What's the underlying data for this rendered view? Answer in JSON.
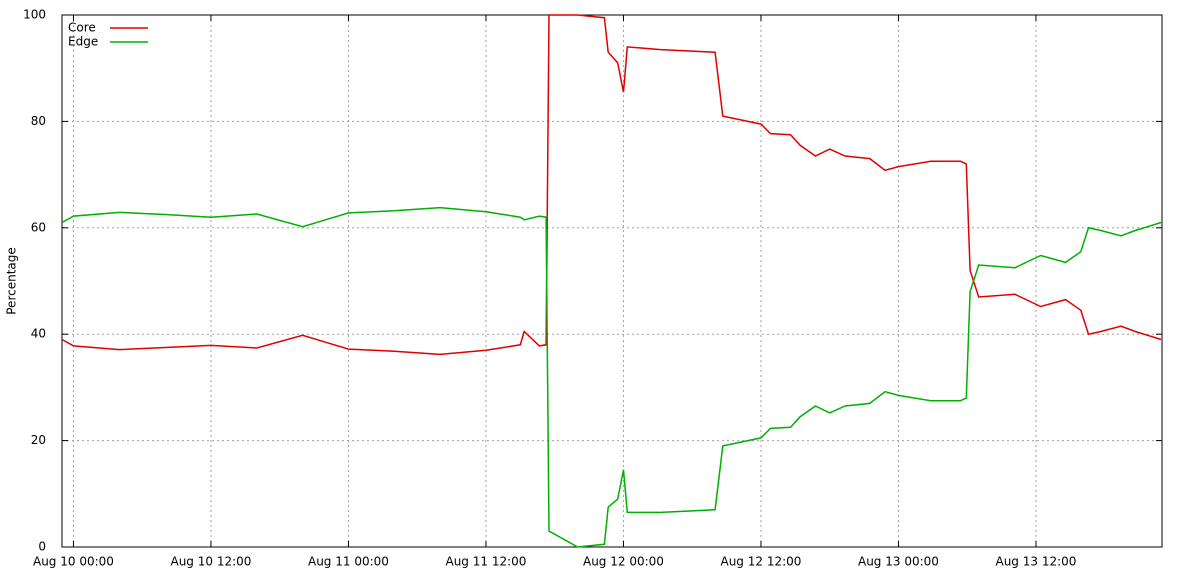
{
  "chart_data": {
    "type": "line",
    "ylabel": "Percentage",
    "x": [
      "Aug 9 23:00",
      "Aug 10 00:00",
      "Aug 10 04:00",
      "Aug 10 08:00",
      "Aug 10 12:00",
      "Aug 10 16:00",
      "Aug 10 20:00",
      "Aug 10 22:00",
      "Aug 11 00:00",
      "Aug 11 04:00",
      "Aug 11 08:00",
      "Aug 11 12:00",
      "Aug 11 15:00",
      "Aug 11 15:20",
      "Aug 11 16:40",
      "Aug 11 17:15",
      "Aug 11 17:30",
      "Aug 11 20:00",
      "Aug 11 22:20",
      "Aug 11 22:40",
      "Aug 11 23:30",
      "Aug 12 00:00",
      "Aug 12 00:20",
      "Aug 12 03:15",
      "Aug 12 08:00",
      "Aug 12 08:40",
      "Aug 12 12:00",
      "Aug 12 12:50",
      "Aug 12 14:35",
      "Aug 12 15:25",
      "Aug 12 16:45",
      "Aug 12 18:00",
      "Aug 12 19:20",
      "Aug 12 21:30",
      "Aug 12 22:50",
      "Aug 13 00:00",
      "Aug 13 02:50",
      "Aug 13 05:25",
      "Aug 13 05:55",
      "Aug 13 06:15",
      "Aug 13 07:00",
      "Aug 13 10:10",
      "Aug 13 12:25",
      "Aug 13 14:35",
      "Aug 13 15:55",
      "Aug 13 16:35",
      "Aug 13 17:40",
      "Aug 13 19:25",
      "Aug 13 20:40",
      "Aug 13 22:55"
    ],
    "series": [
      {
        "name": "Core",
        "color": "#e00000",
        "values": [
          39,
          37.8,
          37.1,
          37.5,
          37.9,
          37.4,
          39.8,
          38.5,
          37.2,
          36.8,
          36.2,
          37,
          38,
          40.5,
          37.8,
          38,
          100,
          100,
          99.5,
          93,
          91,
          85.5,
          94,
          93.5,
          93,
          81,
          79.5,
          77.7,
          77.5,
          75.5,
          73.5,
          74.8,
          73.5,
          73,
          70.8,
          71.5,
          72.5,
          72.5,
          72,
          52,
          47,
          47.5,
          45.2,
          46.5,
          44.5,
          40,
          40.5,
          41.5,
          40.5,
          39
        ]
      },
      {
        "name": "Edge",
        "color": "#00b000",
        "values": [
          61,
          62.2,
          62.9,
          62.5,
          62,
          62.6,
          60.2,
          61.5,
          62.8,
          63.2,
          63.8,
          63,
          62,
          61.5,
          62.2,
          62,
          3,
          0,
          0.5,
          7.5,
          9,
          14.5,
          6.5,
          6.5,
          7,
          19,
          20.5,
          22.3,
          22.5,
          24.5,
          26.5,
          25.2,
          26.5,
          27,
          29.2,
          28.5,
          27.5,
          27.5,
          28,
          48,
          53,
          52.5,
          54.8,
          53.5,
          55.5,
          60,
          59.5,
          58.5,
          59.5,
          61
        ]
      }
    ],
    "xlim": [
      "Aug 9 23:00",
      "Aug 13 23:00"
    ],
    "xticks": [
      "Aug 10 00:00",
      "Aug 10 12:00",
      "Aug 11 00:00",
      "Aug 11 12:00",
      "Aug 12 00:00",
      "Aug 12 12:00",
      "Aug 13 00:00",
      "Aug 13 12:00"
    ],
    "ylim": [
      0,
      100
    ],
    "yticks": [
      0,
      20,
      40,
      60,
      80,
      100
    ],
    "grid": true,
    "legend": "top-left"
  }
}
